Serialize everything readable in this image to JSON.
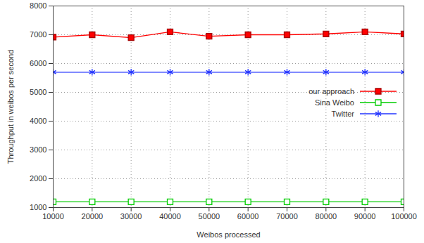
{
  "chart_data": {
    "type": "line",
    "x_label": "Weibos processed",
    "y_label": "Throughput in weibos per second",
    "x": [
      10000,
      20000,
      30000,
      40000,
      50000,
      60000,
      70000,
      80000,
      90000,
      100000
    ],
    "xlim": [
      10000,
      100000
    ],
    "xticks": [
      10000,
      20000,
      30000,
      40000,
      50000,
      60000,
      70000,
      80000,
      90000,
      100000
    ],
    "ylim": [
      1000,
      8000
    ],
    "yticks": [
      1000,
      2000,
      3000,
      4000,
      5000,
      6000,
      7000,
      8000
    ],
    "grid": true,
    "legend": "right",
    "series": [
      {
        "name": "our approach",
        "color": "#ff0000",
        "marker": "square",
        "values": [
          6920,
          7000,
          6900,
          7100,
          6950,
          7000,
          7000,
          7030,
          7100,
          7030
        ]
      },
      {
        "name": "Sina Weibo",
        "color": "#00cc00",
        "marker": "open_square",
        "values": [
          1200,
          1200,
          1200,
          1200,
          1200,
          1200,
          1200,
          1200,
          1200,
          1200
        ]
      },
      {
        "name": "Twitter",
        "color": "#2233ff",
        "marker": "asterisk",
        "values": [
          5700,
          5700,
          5700,
          5700,
          5700,
          5700,
          5700,
          5700,
          5700,
          5700
        ]
      }
    ]
  }
}
